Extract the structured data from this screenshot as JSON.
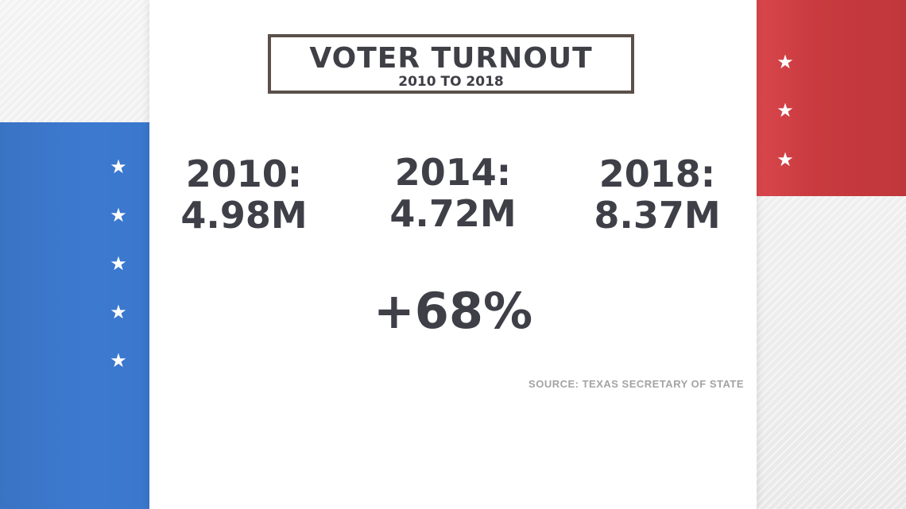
{
  "title": {
    "main": "VOTER TURNOUT",
    "subtitle": "2010 TO 2018"
  },
  "stats": [
    {
      "year": "2010:",
      "value": "4.98M"
    },
    {
      "year": "2014:",
      "value": "4.72M"
    },
    {
      "year": "2018:",
      "value": "8.37M"
    }
  ],
  "change": "+68%",
  "source": "SOURCE: TEXAS SECRETARY OF STATE",
  "colors": {
    "blue_panel": "#3a77cc",
    "red_panel": "#c83a3f",
    "text": "#3e3f47",
    "border": "#5b5049",
    "source": "#a3a3a3"
  },
  "icons": {
    "left_stars": [
      "star-icon",
      "star-icon",
      "star-icon",
      "star-icon",
      "star-icon"
    ],
    "right_stars": [
      "star-icon",
      "star-icon",
      "star-icon"
    ]
  }
}
